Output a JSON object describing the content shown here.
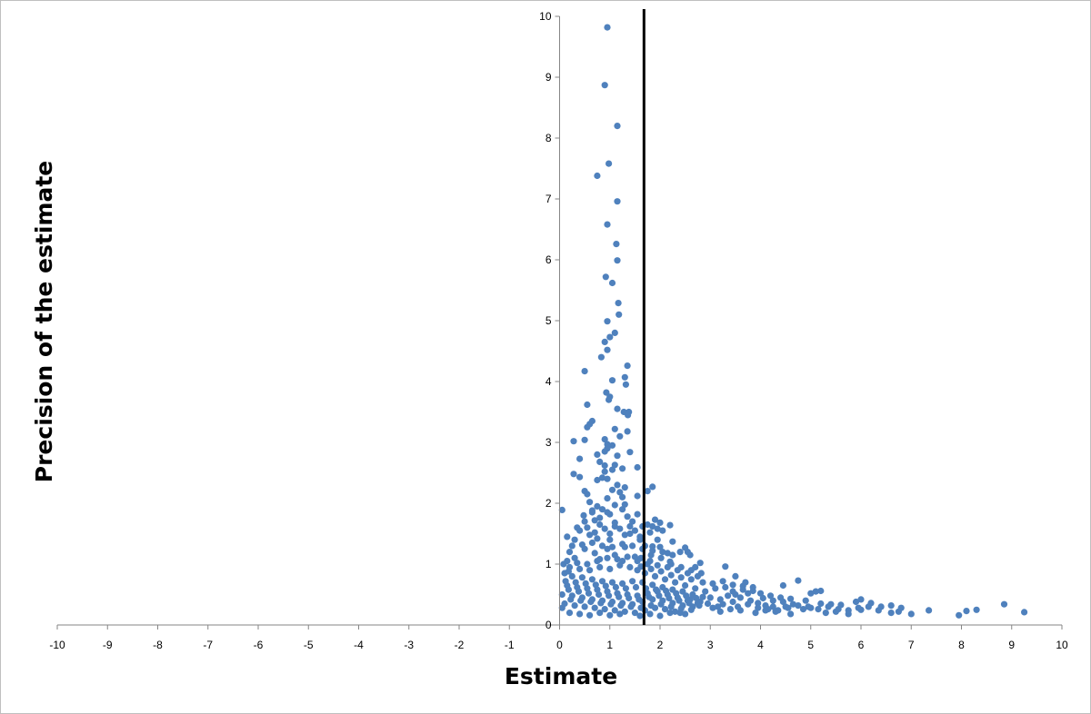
{
  "chart_data": {
    "type": "scatter",
    "xlabel": "Estimate",
    "ylabel": "Precision of the estimate",
    "xlim": [
      -10,
      10
    ],
    "ylim": [
      0,
      10
    ],
    "x_ticks": [
      "-10",
      "-9",
      "-8",
      "-7",
      "-6",
      "-5",
      "-4",
      "-3",
      "-2",
      "-1",
      "0",
      "1",
      "2",
      "3",
      "4",
      "5",
      "6",
      "7",
      "8",
      "9",
      "10"
    ],
    "y_ticks": [
      "0",
      "1",
      "2",
      "3",
      "4",
      "5",
      "6",
      "7",
      "8",
      "9",
      "10"
    ],
    "vertical_line": {
      "x": 1.68
    },
    "grid": false,
    "legend": "none",
    "colors": {
      "point": "#4f81bd",
      "line": "#000000"
    },
    "points": [
      [
        0.95,
        9.82
      ],
      [
        0.9,
        8.87
      ],
      [
        1.15,
        8.2
      ],
      [
        0.98,
        7.58
      ],
      [
        0.75,
        7.38
      ],
      [
        1.15,
        6.96
      ],
      [
        0.95,
        6.58
      ],
      [
        1.13,
        6.26
      ],
      [
        1.15,
        5.99
      ],
      [
        0.92,
        5.72
      ],
      [
        1.05,
        5.62
      ],
      [
        1.17,
        5.29
      ],
      [
        1.18,
        5.1
      ],
      [
        0.95,
        4.99
      ],
      [
        1.1,
        4.8
      ],
      [
        1.0,
        4.73
      ],
      [
        0.9,
        4.65
      ],
      [
        0.95,
        4.52
      ],
      [
        0.83,
        4.4
      ],
      [
        1.35,
        4.26
      ],
      [
        0.5,
        4.17
      ],
      [
        1.05,
        4.02
      ],
      [
        1.3,
        4.07
      ],
      [
        1.32,
        3.95
      ],
      [
        0.93,
        3.82
      ],
      [
        1.0,
        3.75
      ],
      [
        0.98,
        3.7
      ],
      [
        1.15,
        3.55
      ],
      [
        1.28,
        3.5
      ],
      [
        1.38,
        3.5
      ],
      [
        1.36,
        3.45
      ],
      [
        0.55,
        3.62
      ],
      [
        0.65,
        3.35
      ],
      [
        0.6,
        3.3
      ],
      [
        0.55,
        3.25
      ],
      [
        1.1,
        3.22
      ],
      [
        1.35,
        3.18
      ],
      [
        1.2,
        3.1
      ],
      [
        0.9,
        3.05
      ],
      [
        0.95,
        2.97
      ],
      [
        0.28,
        3.02
      ],
      [
        0.5,
        3.04
      ],
      [
        1.05,
        2.95
      ],
      [
        0.95,
        2.9
      ],
      [
        0.9,
        2.85
      ],
      [
        1.4,
        2.84
      ],
      [
        0.75,
        2.8
      ],
      [
        1.15,
        2.78
      ],
      [
        0.4,
        2.73
      ],
      [
        0.8,
        2.68
      ],
      [
        0.9,
        2.62
      ],
      [
        1.1,
        2.63
      ],
      [
        1.25,
        2.57
      ],
      [
        1.55,
        2.59
      ],
      [
        1.05,
        2.55
      ],
      [
        0.9,
        2.52
      ],
      [
        0.28,
        2.48
      ],
      [
        0.4,
        2.43
      ],
      [
        0.85,
        2.42
      ],
      [
        0.95,
        2.4
      ],
      [
        0.75,
        2.38
      ],
      [
        1.3,
        2.26
      ],
      [
        1.15,
        2.3
      ],
      [
        1.05,
        2.22
      ],
      [
        1.2,
        2.18
      ],
      [
        0.5,
        2.2
      ],
      [
        0.55,
        2.15
      ],
      [
        1.25,
        2.1
      ],
      [
        1.55,
        2.12
      ],
      [
        1.75,
        2.2
      ],
      [
        1.85,
        2.27
      ],
      [
        0.95,
        2.08
      ],
      [
        0.6,
        2.02
      ],
      [
        0.75,
        1.95
      ],
      [
        1.1,
        1.97
      ],
      [
        1.3,
        1.98
      ],
      [
        0.05,
        1.89
      ],
      [
        0.85,
        1.9
      ],
      [
        0.65,
        1.85
      ],
      [
        1.0,
        1.82
      ],
      [
        0.48,
        1.8
      ],
      [
        1.35,
        1.78
      ],
      [
        0.8,
        1.76
      ],
      [
        0.7,
        1.72
      ],
      [
        1.45,
        1.7
      ],
      [
        1.9,
        1.73
      ],
      [
        2.0,
        1.68
      ],
      [
        1.75,
        1.65
      ],
      [
        2.2,
        1.64
      ],
      [
        1.65,
        1.62
      ],
      [
        1.1,
        1.62
      ],
      [
        1.85,
        1.62
      ],
      [
        0.35,
        1.6
      ],
      [
        0.55,
        1.6
      ],
      [
        0.9,
        1.58
      ],
      [
        1.2,
        1.58
      ],
      [
        1.5,
        1.55
      ],
      [
        1.95,
        1.58
      ],
      [
        2.05,
        1.55
      ],
      [
        1.8,
        1.52
      ],
      [
        1.4,
        1.5
      ],
      [
        0.6,
        1.48
      ],
      [
        0.15,
        1.45
      ],
      [
        0.3,
        1.4
      ],
      [
        0.75,
        1.42
      ],
      [
        1.0,
        1.4
      ],
      [
        1.6,
        1.4
      ],
      [
        1.95,
        1.4
      ],
      [
        2.25,
        1.37
      ],
      [
        2.5,
        1.27
      ],
      [
        2.55,
        1.2
      ],
      [
        2.15,
        1.18
      ],
      [
        2.4,
        1.2
      ],
      [
        2.6,
        1.15
      ],
      [
        1.7,
        1.3
      ],
      [
        1.85,
        1.29
      ],
      [
        2.0,
        1.28
      ],
      [
        1.3,
        1.28
      ],
      [
        0.5,
        1.25
      ],
      [
        0.95,
        1.25
      ],
      [
        0.2,
        1.2
      ],
      [
        0.7,
        1.18
      ],
      [
        1.1,
        1.15
      ],
      [
        1.5,
        1.12
      ],
      [
        0.3,
        1.1
      ],
      [
        0.8,
        1.08
      ],
      [
        1.25,
        1.05
      ],
      [
        1.8,
        1.05
      ],
      [
        2.2,
        1.04
      ],
      [
        2.8,
        1.02
      ],
      [
        2.7,
        0.95
      ],
      [
        3.3,
        0.96
      ],
      [
        3.5,
        0.8
      ],
      [
        3.7,
        0.7
      ],
      [
        3.85,
        0.62
      ],
      [
        4.45,
        0.65
      ],
      [
        4.75,
        0.73
      ],
      [
        5.2,
        0.56
      ],
      [
        5.1,
        0.55
      ],
      [
        5.0,
        0.52
      ],
      [
        4.0,
        0.52
      ],
      [
        4.2,
        0.48
      ],
      [
        4.4,
        0.45
      ],
      [
        4.6,
        0.43
      ],
      [
        4.9,
        0.4
      ],
      [
        5.2,
        0.35
      ],
      [
        5.4,
        0.34
      ],
      [
        5.6,
        0.33
      ],
      [
        5.9,
        0.38
      ],
      [
        6.0,
        0.42
      ],
      [
        6.2,
        0.36
      ],
      [
        6.4,
        0.3
      ],
      [
        6.6,
        0.32
      ],
      [
        6.8,
        0.28
      ],
      [
        7.35,
        0.24
      ],
      [
        7.95,
        0.16
      ],
      [
        8.1,
        0.23
      ],
      [
        8.3,
        0.25
      ],
      [
        8.85,
        0.34
      ],
      [
        9.25,
        0.21
      ],
      [
        6.0,
        0.25
      ],
      [
        5.75,
        0.18
      ],
      [
        5.5,
        0.22
      ],
      [
        5.0,
        0.28
      ],
      [
        4.85,
        0.26
      ],
      [
        4.3,
        0.22
      ],
      [
        4.1,
        0.24
      ],
      [
        3.9,
        0.2
      ],
      [
        3.6,
        0.24
      ],
      [
        3.4,
        0.26
      ],
      [
        3.15,
        0.3
      ],
      [
        2.95,
        0.35
      ],
      [
        2.8,
        0.38
      ],
      [
        2.6,
        0.42
      ],
      [
        6.6,
        0.2
      ],
      [
        7.0,
        0.18
      ],
      [
        5.3,
        0.2
      ],
      [
        4.6,
        0.18
      ],
      [
        3.2,
        0.22
      ],
      [
        2.4,
        0.2
      ],
      [
        3.0,
        0.45
      ],
      [
        3.2,
        0.42
      ],
      [
        3.35,
        0.48
      ],
      [
        3.5,
        0.5
      ],
      [
        3.6,
        0.45
      ],
      [
        3.8,
        0.4
      ],
      [
        3.95,
        0.36
      ],
      [
        4.1,
        0.32
      ],
      [
        4.25,
        0.3
      ],
      [
        4.5,
        0.3
      ],
      [
        3.1,
        0.6
      ],
      [
        3.3,
        0.62
      ],
      [
        3.45,
        0.55
      ],
      [
        3.65,
        0.58
      ],
      [
        3.75,
        0.52
      ],
      [
        2.9,
        0.55
      ],
      [
        2.7,
        0.6
      ],
      [
        2.5,
        0.65
      ],
      [
        2.3,
        0.7
      ],
      [
        2.1,
        0.75
      ],
      [
        1.9,
        0.8
      ],
      [
        1.7,
        0.85
      ],
      [
        1.55,
        0.9
      ],
      [
        1.4,
        0.95
      ],
      [
        1.2,
        0.98
      ],
      [
        1.0,
        0.92
      ],
      [
        0.8,
        0.95
      ],
      [
        0.6,
        0.9
      ],
      [
        0.4,
        0.92
      ],
      [
        0.2,
        0.95
      ],
      [
        0.1,
        0.85
      ],
      [
        0.25,
        0.8
      ],
      [
        0.45,
        0.78
      ],
      [
        0.65,
        0.75
      ],
      [
        0.85,
        0.72
      ],
      [
        1.05,
        0.7
      ],
      [
        1.25,
        0.68
      ],
      [
        1.45,
        0.72
      ],
      [
        1.65,
        0.7
      ],
      [
        1.85,
        0.66
      ],
      [
        2.05,
        0.62
      ],
      [
        2.25,
        0.58
      ],
      [
        2.45,
        0.55
      ],
      [
        2.65,
        0.5
      ],
      [
        2.85,
        0.46
      ],
      [
        0.15,
        0.65
      ],
      [
        0.35,
        0.62
      ],
      [
        0.55,
        0.6
      ],
      [
        0.75,
        0.58
      ],
      [
        0.95,
        0.55
      ],
      [
        1.15,
        0.52
      ],
      [
        1.35,
        0.5
      ],
      [
        1.55,
        0.48
      ],
      [
        1.75,
        0.52
      ],
      [
        1.95,
        0.55
      ],
      [
        2.15,
        0.5
      ],
      [
        2.35,
        0.45
      ],
      [
        2.55,
        0.4
      ],
      [
        2.75,
        0.36
      ],
      [
        0.05,
        0.5
      ],
      [
        0.25,
        0.48
      ],
      [
        0.45,
        0.45
      ],
      [
        0.65,
        0.42
      ],
      [
        0.85,
        0.4
      ],
      [
        1.05,
        0.38
      ],
      [
        1.25,
        0.36
      ],
      [
        1.45,
        0.34
      ],
      [
        1.65,
        0.38
      ],
      [
        1.85,
        0.42
      ],
      [
        2.05,
        0.4
      ],
      [
        2.25,
        0.36
      ],
      [
        2.45,
        0.32
      ],
      [
        2.65,
        0.3
      ],
      [
        0.1,
        0.35
      ],
      [
        0.3,
        0.32
      ],
      [
        0.5,
        0.3
      ],
      [
        0.7,
        0.28
      ],
      [
        0.9,
        0.26
      ],
      [
        1.1,
        0.24
      ],
      [
        1.3,
        0.22
      ],
      [
        1.5,
        0.2
      ],
      [
        1.7,
        0.24
      ],
      [
        1.9,
        0.28
      ],
      [
        2.1,
        0.26
      ],
      [
        2.3,
        0.22
      ],
      [
        2.5,
        0.18
      ],
      [
        0.2,
        0.2
      ],
      [
        0.4,
        0.18
      ],
      [
        0.6,
        0.16
      ],
      [
        0.8,
        0.2
      ],
      [
        1.0,
        0.16
      ],
      [
        1.2,
        0.18
      ],
      [
        1.6,
        0.15
      ],
      [
        1.8,
        0.18
      ],
      [
        2.0,
        0.15
      ],
      [
        2.2,
        0.2
      ],
      [
        0.05,
        0.28
      ],
      [
        0.15,
        1.05
      ],
      [
        0.35,
        1.02
      ],
      [
        0.55,
        1.0
      ],
      [
        0.75,
        1.05
      ],
      [
        0.95,
        1.1
      ],
      [
        1.15,
        1.08
      ],
      [
        1.35,
        1.12
      ],
      [
        1.55,
        1.05
      ],
      [
        1.75,
        1.0
      ],
      [
        1.95,
        0.98
      ],
      [
        2.15,
        0.95
      ],
      [
        2.35,
        0.9
      ],
      [
        2.55,
        0.85
      ],
      [
        2.75,
        0.8
      ],
      [
        0.25,
        1.3
      ],
      [
        0.45,
        1.32
      ],
      [
        0.65,
        1.35
      ],
      [
        0.85,
        1.3
      ],
      [
        1.05,
        1.28
      ],
      [
        1.25,
        1.33
      ],
      [
        1.45,
        1.3
      ],
      [
        1.65,
        1.25
      ],
      [
        1.85,
        1.22
      ],
      [
        2.05,
        1.2
      ],
      [
        2.25,
        1.15
      ],
      [
        0.4,
        1.55
      ],
      [
        0.7,
        1.52
      ],
      [
        1.0,
        1.5
      ],
      [
        1.3,
        1.48
      ],
      [
        1.6,
        1.45
      ],
      [
        0.5,
        1.7
      ],
      [
        0.8,
        1.65
      ],
      [
        1.1,
        1.68
      ],
      [
        1.4,
        1.62
      ],
      [
        0.65,
        1.88
      ],
      [
        0.95,
        1.85
      ],
      [
        1.25,
        1.9
      ],
      [
        1.55,
        1.82
      ],
      [
        0.12,
        0.72
      ],
      [
        0.32,
        0.7
      ],
      [
        0.52,
        0.68
      ],
      [
        0.72,
        0.66
      ],
      [
        0.92,
        0.64
      ],
      [
        1.12,
        0.62
      ],
      [
        1.32,
        0.6
      ],
      [
        1.52,
        0.62
      ],
      [
        1.72,
        0.6
      ],
      [
        1.92,
        0.58
      ],
      [
        2.12,
        0.56
      ],
      [
        2.32,
        0.52
      ],
      [
        2.52,
        0.48
      ],
      [
        2.72,
        0.44
      ],
      [
        0.18,
        0.58
      ],
      [
        0.38,
        0.55
      ],
      [
        0.58,
        0.52
      ],
      [
        0.78,
        0.5
      ],
      [
        0.98,
        0.48
      ],
      [
        1.18,
        0.46
      ],
      [
        1.38,
        0.44
      ],
      [
        1.58,
        0.42
      ],
      [
        1.78,
        0.46
      ],
      [
        1.98,
        0.48
      ],
      [
        2.18,
        0.44
      ],
      [
        2.38,
        0.4
      ],
      [
        2.58,
        0.36
      ],
      [
        2.78,
        0.32
      ],
      [
        0.22,
        0.42
      ],
      [
        0.42,
        0.4
      ],
      [
        0.62,
        0.38
      ],
      [
        0.82,
        0.36
      ],
      [
        1.02,
        0.34
      ],
      [
        1.22,
        0.32
      ],
      [
        1.42,
        0.3
      ],
      [
        1.62,
        0.28
      ],
      [
        1.82,
        0.32
      ],
      [
        2.02,
        0.34
      ],
      [
        2.22,
        0.3
      ],
      [
        2.42,
        0.27
      ],
      [
        2.62,
        0.25
      ],
      [
        3.05,
        0.28
      ],
      [
        3.25,
        0.34
      ],
      [
        3.45,
        0.38
      ],
      [
        3.55,
        0.3
      ],
      [
        3.75,
        0.34
      ],
      [
        3.95,
        0.28
      ],
      [
        4.15,
        0.26
      ],
      [
        4.35,
        0.24
      ],
      [
        4.55,
        0.28
      ],
      [
        4.75,
        0.32
      ],
      [
        4.95,
        0.3
      ],
      [
        5.15,
        0.26
      ],
      [
        5.35,
        0.3
      ],
      [
        5.55,
        0.26
      ],
      [
        5.75,
        0.24
      ],
      [
        5.95,
        0.28
      ],
      [
        6.15,
        0.3
      ],
      [
        6.35,
        0.24
      ],
      [
        6.75,
        0.22
      ],
      [
        2.85,
        0.7
      ],
      [
        3.05,
        0.68
      ],
      [
        3.25,
        0.72
      ],
      [
        3.45,
        0.66
      ],
      [
        3.65,
        0.64
      ],
      [
        3.85,
        0.56
      ],
      [
        4.05,
        0.44
      ],
      [
        4.25,
        0.4
      ],
      [
        4.45,
        0.38
      ],
      [
        4.65,
        0.34
      ],
      [
        2.62,
        0.9
      ],
      [
        2.82,
        0.85
      ],
      [
        0.08,
        1.0
      ],
      [
        0.18,
        0.88
      ],
      [
        1.62,
        1.1
      ],
      [
        1.82,
        1.15
      ],
      [
        2.02,
        1.1
      ],
      [
        2.22,
        1.0
      ],
      [
        2.42,
        0.95
      ],
      [
        2.62,
        0.75
      ],
      [
        2.42,
        0.78
      ],
      [
        2.22,
        0.82
      ],
      [
        2.02,
        0.88
      ],
      [
        1.82,
        0.92
      ],
      [
        1.62,
        0.96
      ]
    ]
  }
}
